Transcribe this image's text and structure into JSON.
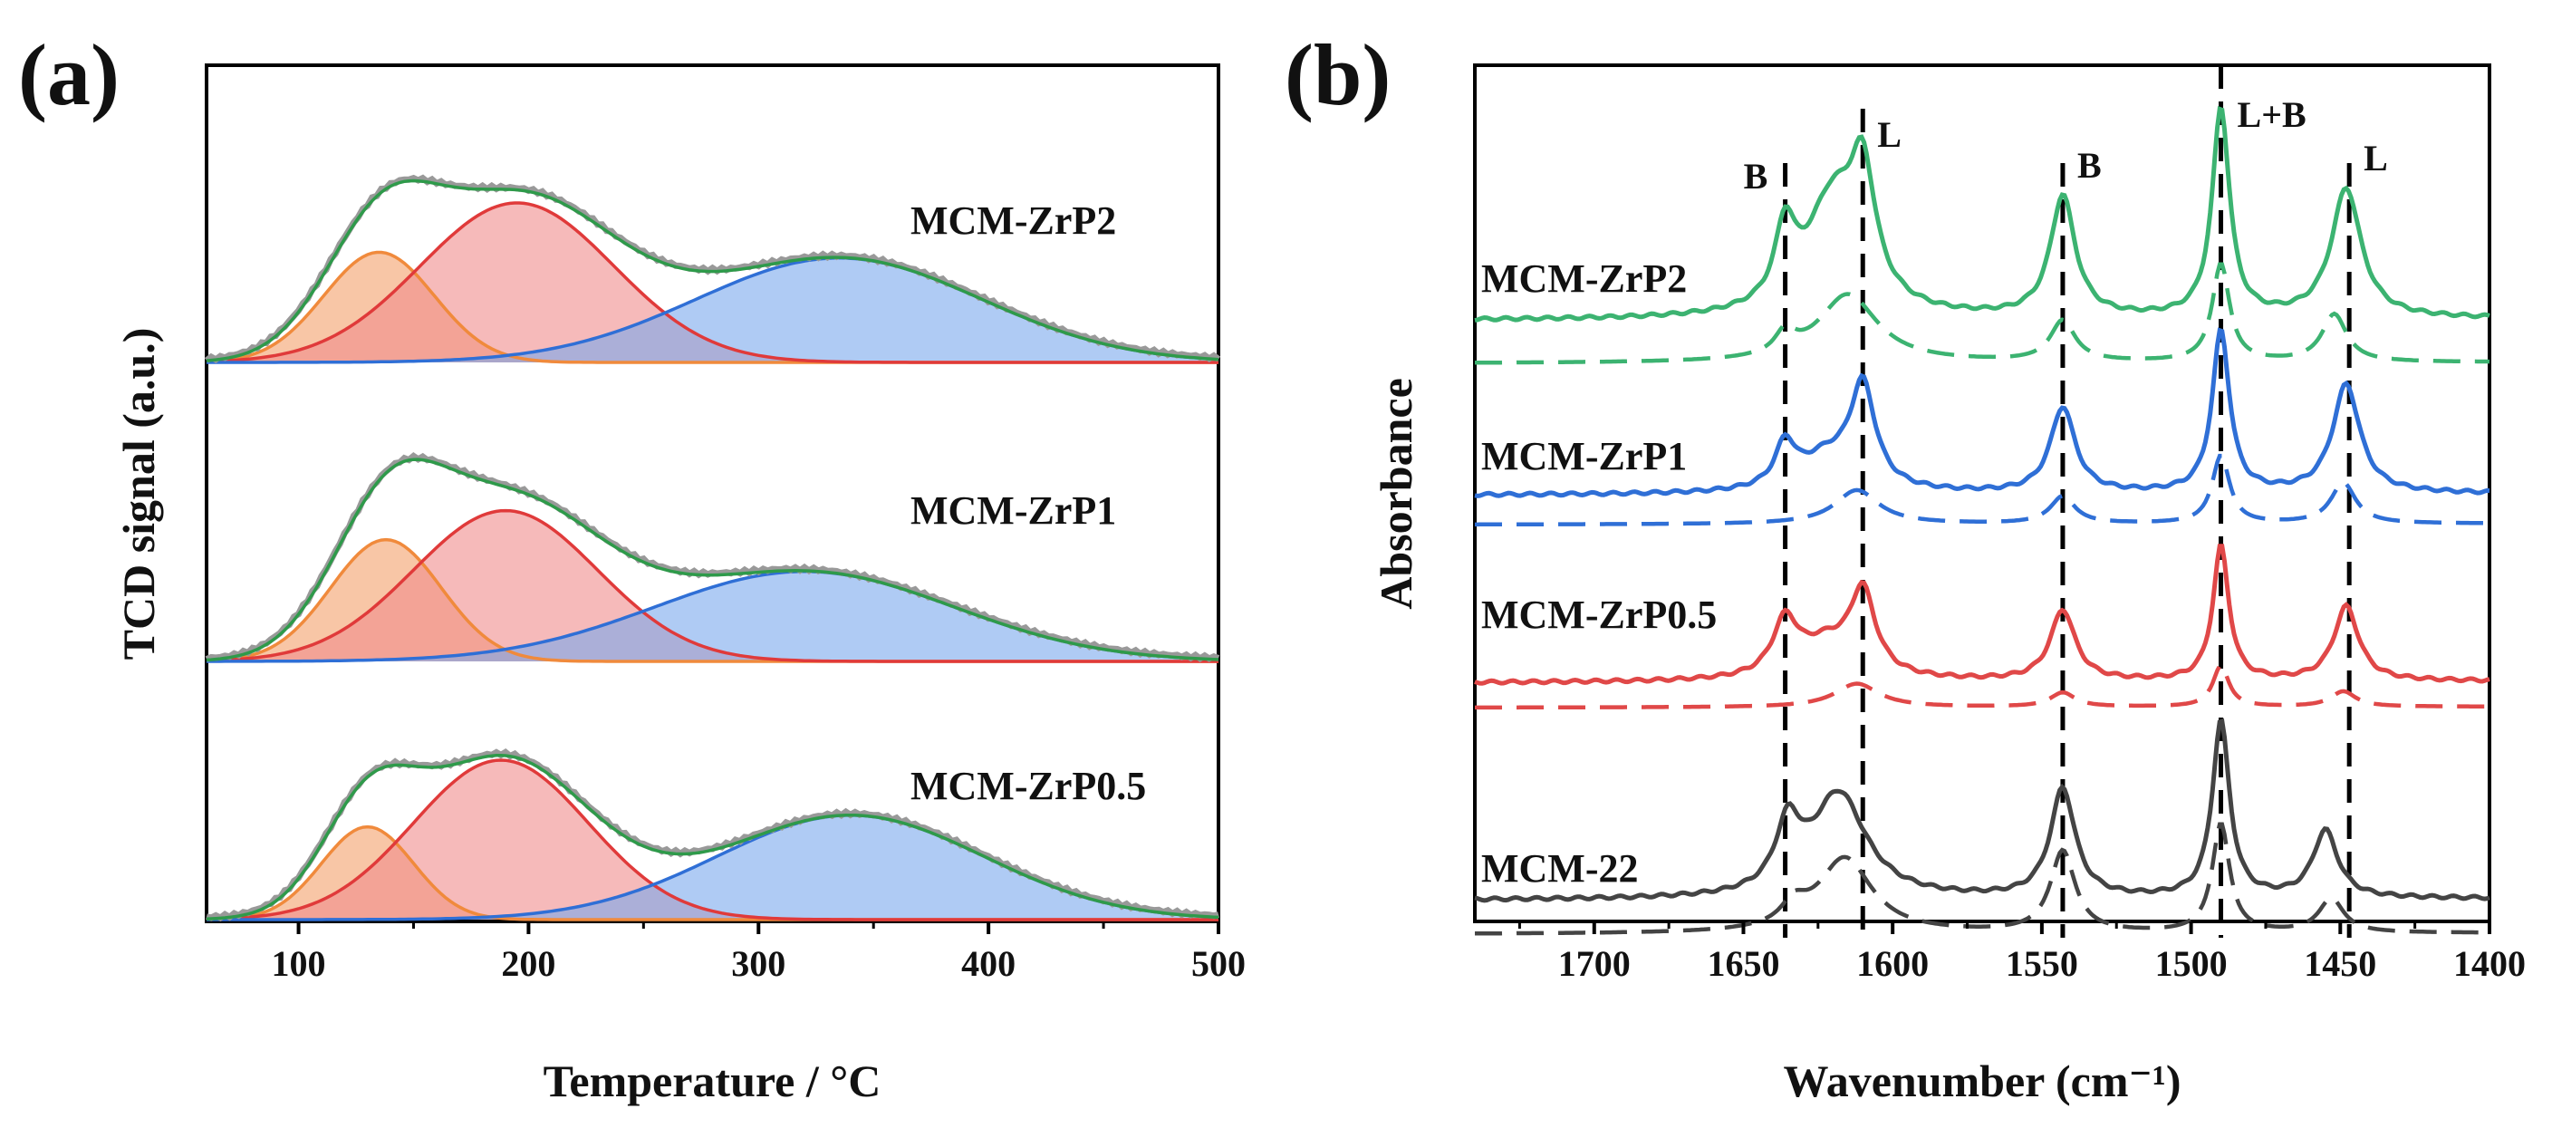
{
  "chart_data": [
    {
      "panel": "(a)",
      "type": "area",
      "xlabel": "Temperature / °C",
      "ylabel": "TCD signal (a.u.)",
      "xlim": [
        60,
        500
      ],
      "xticks": [
        100,
        200,
        300,
        400,
        500
      ],
      "grid": false,
      "samples": [
        {
          "name": "MCM-ZrP2",
          "peaks": [
            {
              "component": "low-temperature",
              "center": 135,
              "width": 24,
              "height": 0.38,
              "color": "#f4a06a"
            },
            {
              "component": "medium-temperature",
              "center": 195,
              "width": 42,
              "height": 0.55,
              "color": "#f08c8c"
            },
            {
              "component": "high-temperature",
              "center": 335,
              "width": 62,
              "height": 0.36,
              "color": "#7aa8ec"
            }
          ]
        },
        {
          "name": "MCM-ZrP1",
          "peaks": [
            {
              "component": "low-temperature",
              "center": 138,
              "width": 24,
              "height": 0.42,
              "color": "#f4a06a"
            },
            {
              "component": "medium-temperature",
              "center": 190,
              "width": 40,
              "height": 0.52,
              "color": "#f08c8c"
            },
            {
              "component": "high-temperature",
              "center": 320,
              "width": 65,
              "height": 0.31,
              "color": "#7aa8ec"
            }
          ]
        },
        {
          "name": "MCM-ZrP0.5",
          "peaks": [
            {
              "component": "low-temperature",
              "center": 130,
              "width": 20,
              "height": 0.32,
              "color": "#f4a06a"
            },
            {
              "component": "medium-temperature",
              "center": 188,
              "width": 38,
              "height": 0.55,
              "color": "#f08c8c"
            },
            {
              "component": "high-temperature",
              "center": 340,
              "width": 58,
              "height": 0.36,
              "color": "#7aa8ec"
            }
          ]
        }
      ],
      "envelope_color": "#2e9a4a",
      "measured_color": "#999999"
    },
    {
      "panel": "(b)",
      "type": "line",
      "xlabel": "Wavenumber (cm⁻¹)",
      "ylabel": "Absorbance",
      "xlim": [
        1740,
        1400
      ],
      "xticks": [
        1700,
        1650,
        1600,
        1550,
        1500,
        1450,
        1400
      ],
      "grid": false,
      "reference_lines": [
        {
          "x": 1636,
          "label": "B"
        },
        {
          "x": 1610,
          "label": "L"
        },
        {
          "x": 1543,
          "label": "B"
        },
        {
          "x": 1490,
          "label": "L+B"
        },
        {
          "x": 1447,
          "label": "L"
        }
      ],
      "series": [
        {
          "name": "MCM-ZrP2",
          "color": "#3cb371",
          "solid_peaks": [
            {
              "center": 1636,
              "width": 4,
              "height": 0.35
            },
            {
              "center": 1620,
              "width": 11,
              "height": 0.55
            },
            {
              "center": 1610,
              "width": 5,
              "height": 0.55
            },
            {
              "center": 1543,
              "width": 5,
              "height": 0.58
            },
            {
              "center": 1490,
              "width": 3.5,
              "height": 1.0
            },
            {
              "center": 1448,
              "width": 6,
              "height": 0.62
            }
          ],
          "dashed_peaks": [
            {
              "center": 1636,
              "width": 4,
              "height": 0.16
            },
            {
              "center": 1615,
              "width": 12,
              "height": 0.5
            },
            {
              "center": 1543,
              "width": 5,
              "height": 0.3
            },
            {
              "center": 1490,
              "width": 3.5,
              "height": 0.72
            },
            {
              "center": 1452,
              "width": 5,
              "height": 0.35
            }
          ]
        },
        {
          "name": "MCM-ZrP1",
          "color": "#2f6fd6",
          "solid_peaks": [
            {
              "center": 1636,
              "width": 4,
              "height": 0.22
            },
            {
              "center": 1610,
              "width": 5,
              "height": 0.52
            },
            {
              "center": 1622,
              "width": 12,
              "height": 0.18
            },
            {
              "center": 1543,
              "width": 5,
              "height": 0.45
            },
            {
              "center": 1490,
              "width": 3.5,
              "height": 0.85
            },
            {
              "center": 1448,
              "width": 5.5,
              "height": 0.57
            }
          ],
          "dashed_peaks": [
            {
              "center": 1612,
              "width": 9,
              "height": 0.25
            },
            {
              "center": 1543,
              "width": 5,
              "height": 0.2
            },
            {
              "center": 1490,
              "width": 3.5,
              "height": 0.5
            },
            {
              "center": 1449,
              "width": 5,
              "height": 0.3
            }
          ]
        },
        {
          "name": "MCM-ZrP0.5",
          "color": "#e04848",
          "solid_peaks": [
            {
              "center": 1636,
              "width": 5,
              "height": 0.3
            },
            {
              "center": 1610,
              "width": 5,
              "height": 0.45
            },
            {
              "center": 1622,
              "width": 12,
              "height": 0.2
            },
            {
              "center": 1543,
              "width": 5,
              "height": 0.4
            },
            {
              "center": 1490,
              "width": 3.2,
              "height": 0.76
            },
            {
              "center": 1448,
              "width": 5,
              "height": 0.42
            }
          ],
          "dashed_peaks": [
            {
              "center": 1612,
              "width": 9,
              "height": 0.2
            },
            {
              "center": 1543,
              "width": 5,
              "height": 0.12
            },
            {
              "center": 1490,
              "width": 3.2,
              "height": 0.35
            },
            {
              "center": 1449,
              "width": 5,
              "height": 0.13
            }
          ]
        },
        {
          "name": "MCM-22",
          "color": "#444444",
          "solid_peaks": [
            {
              "center": 1635,
              "width": 5,
              "height": 0.38
            },
            {
              "center": 1618,
              "width": 11,
              "height": 0.62
            },
            {
              "center": 1543,
              "width": 5,
              "height": 0.65
            },
            {
              "center": 1490,
              "width": 3.5,
              "height": 1.05
            },
            {
              "center": 1455,
              "width": 5,
              "height": 0.4
            }
          ],
          "dashed_peaks": [
            {
              "center": 1633,
              "width": 5,
              "height": 0.15
            },
            {
              "center": 1616,
              "width": 11,
              "height": 0.55
            },
            {
              "center": 1543,
              "width": 5,
              "height": 0.6
            },
            {
              "center": 1490,
              "width": 3.5,
              "height": 0.8
            },
            {
              "center": 1453,
              "width": 5,
              "height": 0.25
            }
          ]
        }
      ]
    }
  ]
}
